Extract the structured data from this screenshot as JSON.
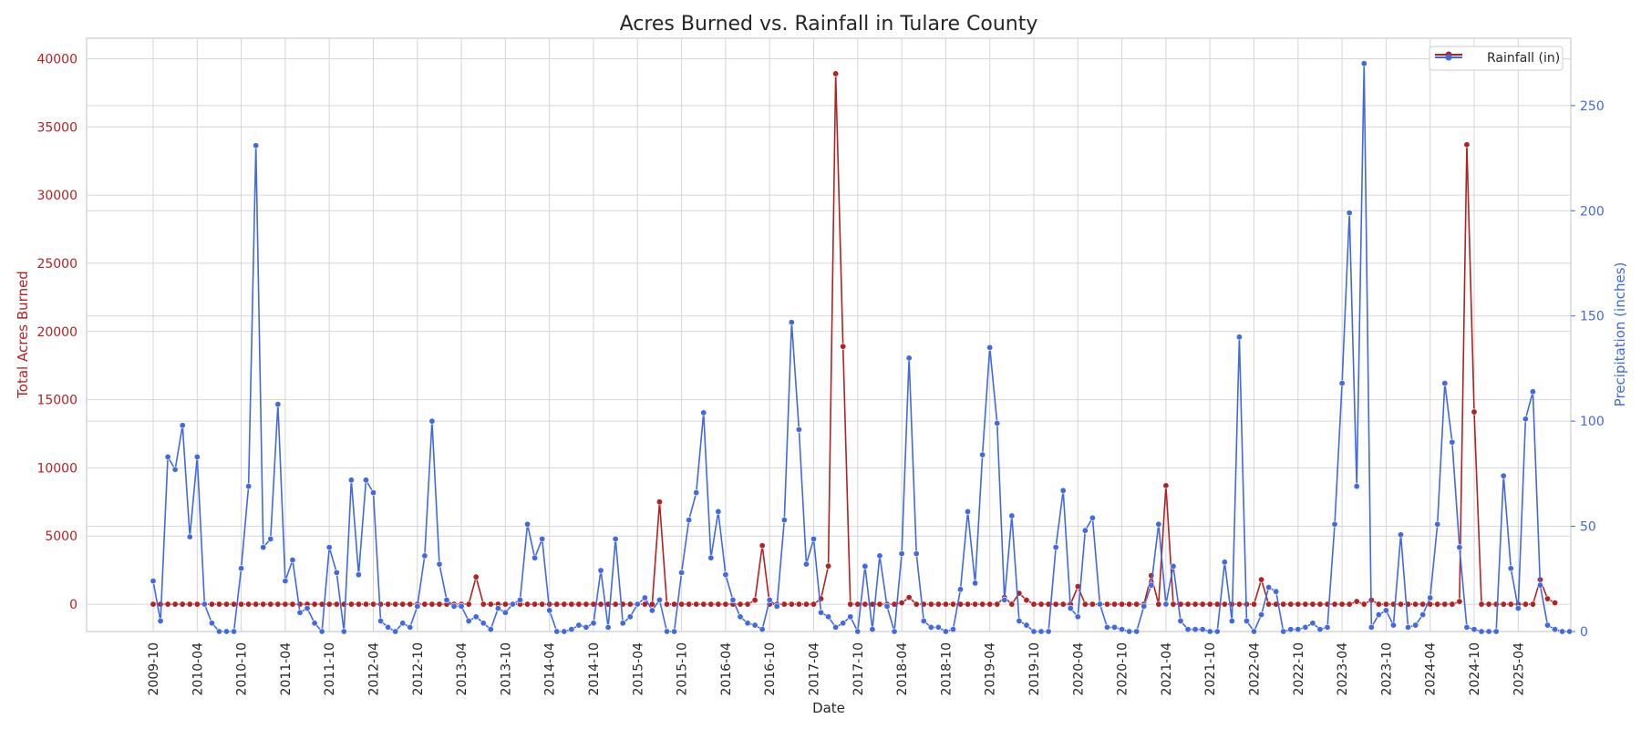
{
  "chart_data": {
    "type": "line",
    "title": "Acres Burned vs. Rainfall in Tulare County",
    "xlabel": "Date",
    "ylabel_left": "Total Acres Burned",
    "ylabel_right": "Precipitation (inches)",
    "left_axis": {
      "ylim": [
        -2000,
        41500
      ],
      "ticks": [
        "0",
        "5000",
        "10000",
        "15000",
        "20000",
        "25000",
        "30000",
        "35000",
        "40000"
      ],
      "color": "#b22222"
    },
    "right_axis": {
      "ylim": [
        0,
        282
      ],
      "ticks": [
        "0",
        "50",
        "100",
        "150",
        "200",
        "250"
      ],
      "color": "#4169e1"
    },
    "x_start": "2009-10",
    "x_tick_labels": [
      "2009-10",
      "2010-04",
      "2010-10",
      "2011-04",
      "2011-10",
      "2012-04",
      "2012-10",
      "2013-04",
      "2013-10",
      "2014-04",
      "2014-10",
      "2015-04",
      "2015-10",
      "2016-04",
      "2016-10",
      "2017-04",
      "2017-10",
      "2018-04",
      "2018-10",
      "2019-04",
      "2019-10",
      "2020-04",
      "2020-10",
      "2021-04",
      "2021-10",
      "2022-04",
      "2022-10",
      "2023-04",
      "2023-10",
      "2024-04",
      "2024-10",
      "2025-04"
    ],
    "grid": true,
    "legend": {
      "position": "top-right",
      "entries": [
        "Rainfall (in)"
      ]
    },
    "series": [
      {
        "axis": "left",
        "color": "#b22222",
        "values": [
          0,
          0,
          0,
          0,
          0,
          0,
          0,
          0,
          0,
          0,
          0,
          0,
          0,
          0,
          0,
          0,
          0,
          0,
          0,
          0,
          0,
          0,
          0,
          0,
          0,
          0,
          0,
          0,
          0,
          0,
          0,
          0,
          0,
          0,
          0,
          0,
          0,
          0,
          0,
          0,
          0,
          0,
          0,
          0,
          2000,
          0,
          0,
          0,
          0,
          0,
          0,
          0,
          0,
          0,
          0,
          0,
          0,
          0,
          0,
          0,
          0,
          0,
          0,
          0,
          0,
          0,
          0,
          0,
          0,
          7500,
          0,
          0,
          0,
          0,
          0,
          0,
          0,
          0,
          0,
          0,
          0,
          0,
          300,
          4300,
          0,
          0,
          0,
          0,
          0,
          0,
          0,
          400,
          2800,
          38900,
          18900,
          0,
          0,
          0,
          0,
          0,
          0,
          0,
          100,
          500,
          0,
          0,
          0,
          0,
          0,
          0,
          0,
          0,
          0,
          0,
          0,
          0,
          500,
          0,
          800,
          300,
          0,
          0,
          0,
          0,
          0,
          0,
          1300,
          0,
          0,
          0,
          0,
          0,
          0,
          0,
          0,
          0,
          2100,
          0,
          8700,
          0,
          0,
          0,
          0,
          0,
          0,
          0,
          0,
          0,
          0,
          0,
          0,
          1800,
          0,
          0,
          0,
          0,
          0,
          0,
          0,
          0,
          0,
          0,
          0,
          0,
          200,
          0,
          300,
          0,
          0,
          0,
          0,
          0,
          0,
          0,
          0,
          0,
          0,
          0,
          200,
          33700,
          14100,
          0,
          0,
          0,
          0,
          0,
          0,
          0,
          0,
          1800,
          400,
          100
        ]
      },
      {
        "axis": "right",
        "color": "#4169e1",
        "values": [
          24,
          5,
          83,
          77,
          98,
          45,
          83,
          13,
          4,
          0,
          0,
          0,
          30,
          69,
          231,
          40,
          44,
          108,
          24,
          34,
          9,
          11,
          4,
          0,
          40,
          28,
          0,
          72,
          27,
          72,
          66,
          5,
          2,
          0,
          4,
          2,
          12,
          36,
          100,
          32,
          15,
          12,
          12,
          5,
          7,
          4,
          1,
          11,
          9,
          13,
          15,
          51,
          35,
          44,
          10,
          0,
          0,
          1,
          3,
          2,
          4,
          29,
          2,
          44,
          4,
          7,
          13,
          16,
          10,
          15,
          0,
          0,
          28,
          53,
          66,
          104,
          35,
          57,
          27,
          15,
          7,
          4,
          3,
          1,
          15,
          12,
          53,
          147,
          96,
          32,
          44,
          9,
          7,
          2,
          4,
          7,
          0,
          31,
          1,
          36,
          12,
          0,
          37,
          130,
          37,
          5,
          2,
          2,
          0,
          1,
          20,
          57,
          23,
          84,
          135,
          99,
          15,
          55,
          5,
          3,
          0,
          0,
          0,
          40,
          67,
          11,
          7,
          48,
          54,
          13,
          2,
          2,
          1,
          0,
          0,
          12,
          22,
          51,
          13,
          31,
          5,
          1,
          1,
          1,
          0,
          0,
          33,
          5,
          140,
          5,
          0,
          8,
          21,
          19,
          0,
          1,
          1,
          2,
          4,
          1,
          2,
          51,
          118,
          199,
          69,
          270,
          2,
          8,
          10,
          3,
          46,
          2,
          3,
          8,
          16,
          51,
          118,
          90,
          40,
          2,
          1,
          0,
          0,
          0,
          74,
          30,
          11,
          101,
          114,
          22,
          3,
          1,
          0,
          0
        ]
      }
    ]
  }
}
